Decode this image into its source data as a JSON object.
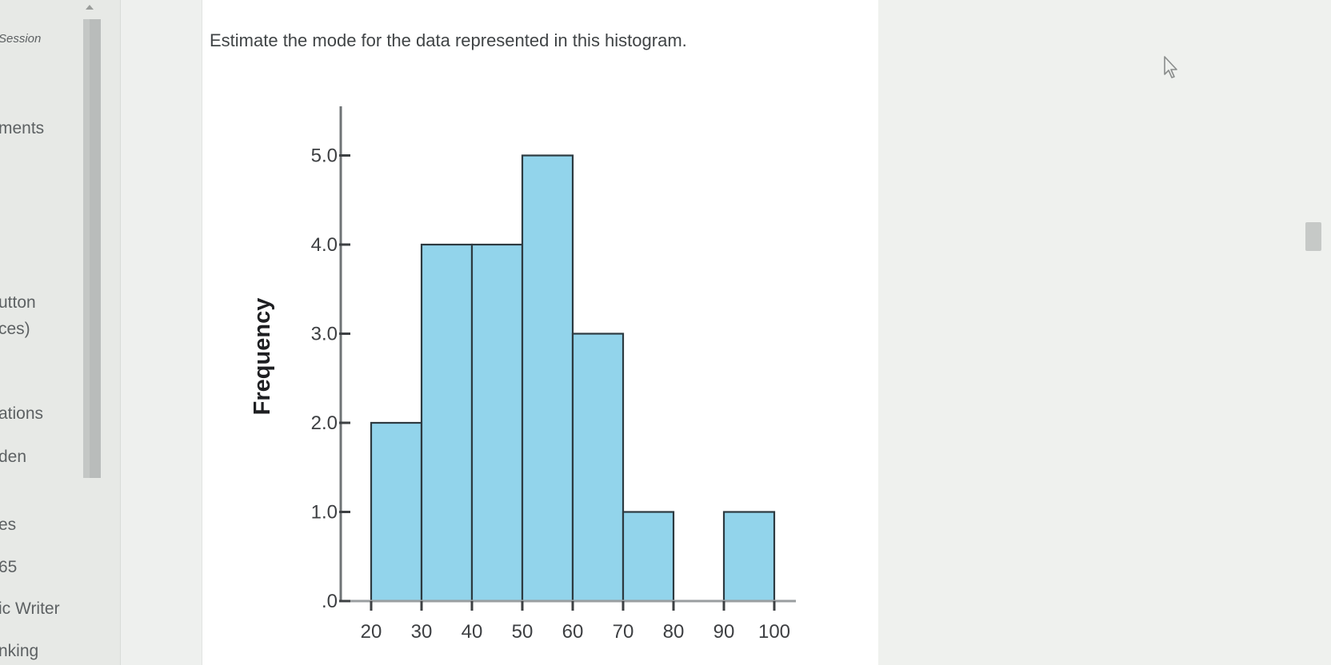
{
  "sidebar": {
    "items": [
      {
        "label": "Session"
      },
      {
        "label": "ments"
      },
      {
        "label": "utton"
      },
      {
        "label": "ces)"
      },
      {
        "label": "ations"
      },
      {
        "label": "den"
      },
      {
        "label": "es"
      },
      {
        "label": "65"
      },
      {
        "label": "ic Writer"
      },
      {
        "label": "nking"
      }
    ]
  },
  "main": {
    "question": "Estimate the mode for the data represented in this histogram."
  },
  "chart_data": {
    "type": "bar",
    "title": "",
    "xlabel": "",
    "ylabel": "Frequency",
    "bins": [
      [
        20,
        30
      ],
      [
        30,
        40
      ],
      [
        40,
        50
      ],
      [
        50,
        60
      ],
      [
        60,
        70
      ],
      [
        70,
        80
      ],
      [
        80,
        90
      ],
      [
        90,
        100
      ]
    ],
    "values": [
      2,
      4,
      4,
      5,
      3,
      1,
      0,
      1
    ],
    "x_ticks": [
      "20",
      "30",
      "40",
      "50",
      "60",
      "70",
      "80",
      "90",
      "100"
    ],
    "y_ticks": [
      ".0",
      "1.0",
      "2.0",
      "3.0",
      "4.0",
      "5.0"
    ],
    "xlim": [
      20,
      100
    ],
    "ylim": [
      0,
      5.5
    ],
    "bar_color": "#92d4eb",
    "grid": false
  }
}
